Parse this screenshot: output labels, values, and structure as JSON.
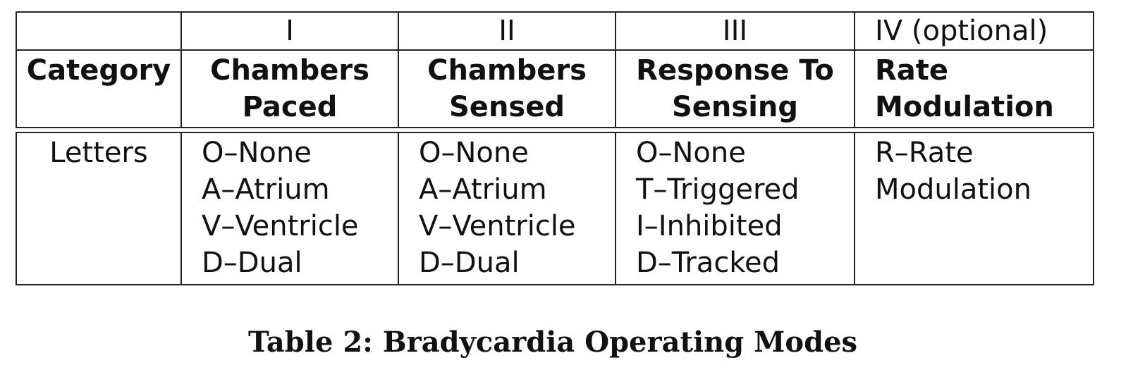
{
  "table": {
    "numbers": [
      "",
      "I",
      "II",
      "III",
      "IV (optional)"
    ],
    "headers": [
      [
        "Category"
      ],
      [
        "Chambers",
        "Paced"
      ],
      [
        "Chambers",
        "Sensed"
      ],
      [
        "Response To",
        "Sensing"
      ],
      [
        "Rate",
        "Modulation"
      ]
    ],
    "row": [
      [
        "Letters"
      ],
      [
        "O–None",
        "A–Atrium",
        "V–Ventricle",
        "D–Dual"
      ],
      [
        "O–None",
        "A–Atrium",
        "V–Ventricle",
        "D–Dual"
      ],
      [
        "O–None",
        "T–Triggered",
        "I–Inhibited",
        "D–Tracked"
      ],
      [
        "R–Rate",
        "Modulation"
      ]
    ]
  },
  "caption": "Table 2: Bradycardia Operating Modes"
}
